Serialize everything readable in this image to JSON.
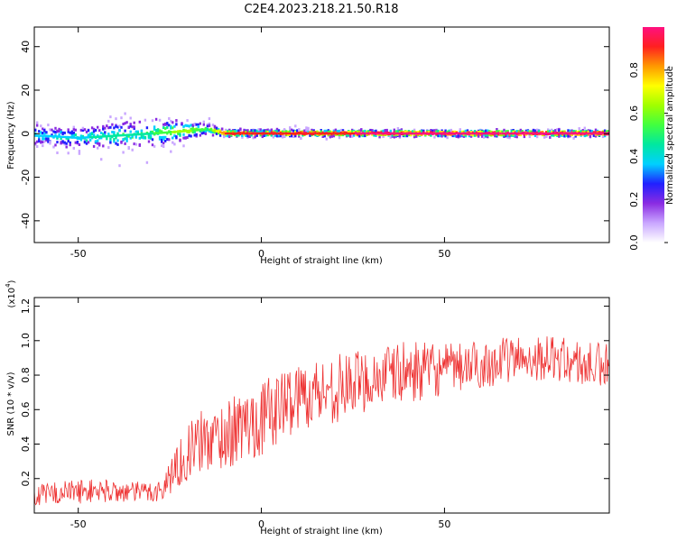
{
  "figure_title": "C2E4.2023.218.21.50.R18",
  "chart_data": [
    {
      "type": "heatmap",
      "title": "C2E4.2023.218.21.50.R18",
      "xlabel": "Height of straight line (km)",
      "ylabel": "Frequency (Hz)",
      "xlim": [
        -62,
        95
      ],
      "ylim": [
        -50,
        49
      ],
      "xticks": [
        -50,
        0,
        50
      ],
      "xtick_labels": [
        "-50",
        "0",
        "50"
      ],
      "yticks": [
        -40,
        -20,
        0,
        20,
        40
      ],
      "ytick_labels": [
        "-40",
        "-20",
        "0",
        "20",
        "40"
      ],
      "colorbar": {
        "label": "Normalized spectral amplitude",
        "range": [
          0.0,
          1.0
        ],
        "ticks": [
          0.0,
          0.2,
          0.4,
          0.6,
          0.8
        ],
        "tick_labels": [
          "0.0",
          "0.2",
          "0.4",
          "0.6",
          "0.8"
        ],
        "colors": [
          "#ffffff",
          "#c9a6ff",
          "#8a2be2",
          "#2020ff",
          "#00d0ff",
          "#00e8a0",
          "#40ff40",
          "#a0ff00",
          "#ffff00",
          "#ff9900",
          "#ff2020",
          "#ff1080"
        ]
      },
      "ridge": {
        "description_points_x": [
          -60,
          -50,
          -40,
          -30,
          -22,
          -15,
          -10,
          0,
          20,
          50,
          80,
          95
        ],
        "center_hz": [
          -1,
          -2,
          -1,
          0,
          1,
          2,
          0,
          0,
          0,
          0,
          0,
          0
        ],
        "spread_hz": [
          8,
          10,
          12,
          12,
          8,
          5,
          3,
          3,
          2,
          2,
          2,
          2
        ],
        "peak_amplitude": [
          0.35,
          0.35,
          0.4,
          0.45,
          0.6,
          0.45,
          0.85,
          0.9,
          0.9,
          0.95,
          0.95,
          0.95
        ]
      },
      "grid": false
    },
    {
      "type": "line",
      "xlabel": "Height of straight line (km)",
      "ylabel": "SNR (10 * v/v)",
      "y_multiplier_label": "(x10",
      "y_multiplier_exp": "4",
      "y_multiplier_close": ")",
      "xlim": [
        -62,
        95
      ],
      "ylim": [
        0.0,
        1.25
      ],
      "xticks": [
        -50,
        0,
        50
      ],
      "xtick_labels": [
        "-50",
        "0",
        "50"
      ],
      "yticks": [
        0.2,
        0.4,
        0.6,
        0.8,
        1.0,
        1.2
      ],
      "ytick_labels": [
        "0.2",
        "0.4",
        "0.6",
        "0.8",
        "1.0",
        "1.2"
      ],
      "series": [
        {
          "color": "#ee3333",
          "trend_x": [
            -62,
            -55,
            -45,
            -35,
            -27,
            -24,
            -18,
            -10,
            0,
            10,
            20,
            30,
            40,
            50,
            60,
            70,
            80,
            90,
            95
          ],
          "trend_y": [
            0.1,
            0.12,
            0.13,
            0.12,
            0.13,
            0.25,
            0.4,
            0.45,
            0.55,
            0.68,
            0.72,
            0.78,
            0.82,
            0.83,
            0.86,
            0.9,
            0.9,
            0.85,
            0.85
          ],
          "noise_amplitude": [
            0.06,
            0.07,
            0.07,
            0.06,
            0.07,
            0.12,
            0.18,
            0.2,
            0.22,
            0.2,
            0.2,
            0.18,
            0.18,
            0.15,
            0.14,
            0.13,
            0.13,
            0.14,
            0.14
          ]
        }
      ],
      "grid": false
    }
  ]
}
